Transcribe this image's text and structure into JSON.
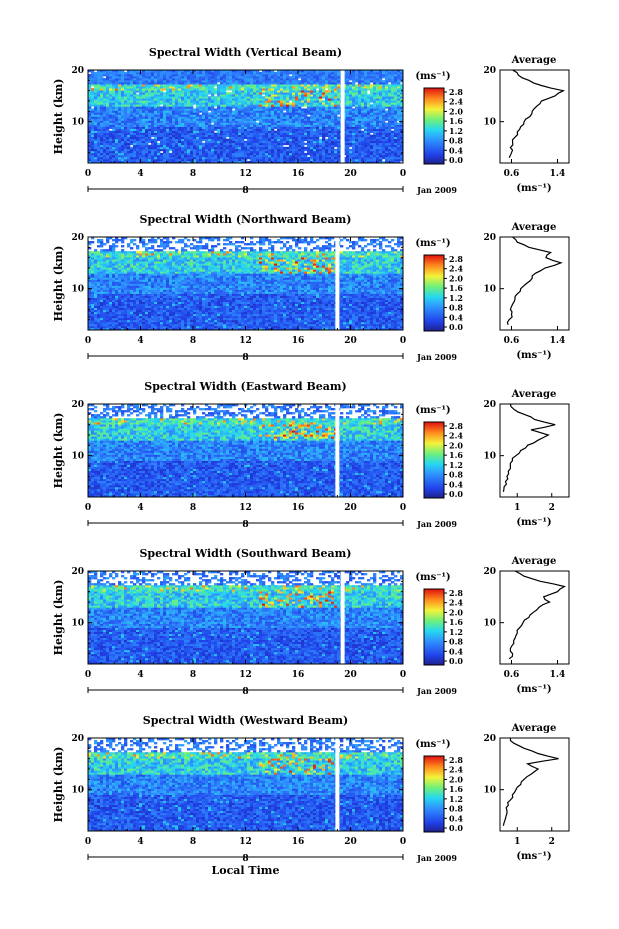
{
  "chart_data": [
    {
      "type": "heatmap",
      "title": "Spectral Width (Vertical Beam)",
      "ylabel": "Height (km)",
      "xlim": [
        0,
        24
      ],
      "ylim": [
        2,
        20
      ],
      "x_ticks": [
        "0",
        "4",
        "8",
        "12",
        "16",
        "20",
        "0"
      ],
      "y_ticks": [
        "10",
        "20"
      ],
      "date_marker": "8",
      "date_label": "Jan 2009",
      "gap_hour": 19.4,
      "colorbar": {
        "unit": "(ms⁻¹)",
        "ticks": [
          "2.8",
          "2.4",
          "2.0",
          "1.6",
          "1.2",
          "0.8",
          "0.4",
          "0.0"
        ]
      },
      "average": {
        "title": "Average",
        "xlabel": "(ms⁻¹)",
        "x_ticks": [
          "0.6",
          "1.4"
        ],
        "y_ticks": [
          "10",
          "20"
        ],
        "xlim": [
          0.4,
          1.6
        ],
        "heights": [
          3,
          4,
          5,
          6,
          7,
          8,
          9,
          10,
          11,
          12,
          13,
          14,
          15,
          16,
          17,
          18,
          19,
          20
        ],
        "values": [
          0.56,
          0.6,
          0.58,
          0.62,
          0.66,
          0.7,
          0.76,
          0.82,
          0.92,
          0.96,
          1.04,
          1.12,
          1.36,
          1.5,
          1.12,
          0.9,
          0.72,
          0.62
        ]
      }
    },
    {
      "type": "heatmap",
      "title": "Spectral Width (Northward Beam)",
      "ylabel": "Height (km)",
      "xlim": [
        0,
        24
      ],
      "ylim": [
        2,
        20
      ],
      "x_ticks": [
        "0",
        "4",
        "8",
        "12",
        "16",
        "20",
        "0"
      ],
      "y_ticks": [
        "10",
        "20"
      ],
      "date_marker": "8",
      "date_label": "Jan 2009",
      "gap_hour": 19.0,
      "colorbar": {
        "unit": "(ms⁻¹)",
        "ticks": [
          "2.8",
          "2.4",
          "2.0",
          "1.6",
          "1.2",
          "0.8",
          "0.4",
          "0.0"
        ]
      },
      "average": {
        "title": "Average",
        "xlabel": "(ms⁻¹)",
        "x_ticks": [
          "0.6",
          "1.4"
        ],
        "y_ticks": [
          "10",
          "20"
        ],
        "xlim": [
          0.4,
          1.6
        ],
        "heights": [
          3,
          4,
          5,
          6,
          7,
          8,
          9,
          10,
          11,
          12,
          13,
          14,
          15,
          16,
          17,
          18,
          19,
          20
        ],
        "values": [
          0.54,
          0.56,
          0.6,
          0.58,
          0.62,
          0.66,
          0.7,
          0.76,
          0.86,
          0.96,
          1.02,
          1.18,
          1.46,
          1.2,
          1.28,
          0.9,
          0.7,
          0.62
        ]
      }
    },
    {
      "type": "heatmap",
      "title": "Spectral Width (Eastward Beam)",
      "ylabel": "Height (km)",
      "xlim": [
        0,
        24
      ],
      "ylim": [
        2,
        20
      ],
      "x_ticks": [
        "0",
        "4",
        "8",
        "12",
        "16",
        "20",
        "0"
      ],
      "y_ticks": [
        "10",
        "20"
      ],
      "date_marker": "8",
      "date_label": "Jan 2009",
      "gap_hour": 19.0,
      "colorbar": {
        "unit": "(ms⁻¹)",
        "ticks": [
          "2.8",
          "2.4",
          "2.0",
          "1.6",
          "1.2",
          "0.8",
          "0.4",
          "0.0"
        ]
      },
      "average": {
        "title": "Average",
        "xlabel": "(ms⁻¹)",
        "x_ticks": [
          "1",
          "2"
        ],
        "y_ticks": [
          "10",
          "20"
        ],
        "xlim": [
          0.5,
          2.5
        ],
        "heights": [
          3,
          4,
          5,
          6,
          7,
          8,
          9,
          10,
          11,
          12,
          13,
          14,
          15,
          16,
          17,
          18,
          19,
          20
        ],
        "values": [
          0.6,
          0.62,
          0.66,
          0.7,
          0.74,
          0.8,
          0.86,
          0.96,
          1.1,
          1.3,
          1.6,
          1.9,
          1.4,
          2.1,
          1.5,
          1.2,
          0.9,
          0.8
        ]
      }
    },
    {
      "type": "heatmap",
      "title": "Spectral Width (Southward Beam)",
      "ylabel": "Height (km)",
      "xlim": [
        0,
        24
      ],
      "ylim": [
        2,
        20
      ],
      "x_ticks": [
        "0",
        "4",
        "8",
        "12",
        "16",
        "20",
        "0"
      ],
      "y_ticks": [
        "10",
        "20"
      ],
      "date_marker": "8",
      "date_label": "Jan 2009",
      "gap_hour": 19.4,
      "colorbar": {
        "unit": "(ms⁻¹)",
        "ticks": [
          "2.8",
          "2.4",
          "2.0",
          "1.6",
          "1.2",
          "0.8",
          "0.4",
          "0.0"
        ]
      },
      "average": {
        "title": "Average",
        "xlabel": "(ms⁻¹)",
        "x_ticks": [
          "0.6",
          "1.4"
        ],
        "y_ticks": [
          "10",
          "20"
        ],
        "xlim": [
          0.4,
          1.6
        ],
        "heights": [
          3,
          4,
          5,
          6,
          7,
          8,
          9,
          10,
          11,
          12,
          13,
          14,
          15,
          16,
          17,
          18,
          19,
          20
        ],
        "values": [
          0.56,
          0.62,
          0.58,
          0.64,
          0.66,
          0.7,
          0.74,
          0.8,
          0.9,
          0.98,
          1.08,
          1.26,
          1.16,
          1.4,
          1.52,
          1.1,
          0.82,
          0.66
        ]
      }
    },
    {
      "type": "heatmap",
      "title": "Spectral Width (Westward Beam)",
      "ylabel": "Height (km)",
      "xlabel": "Local Time",
      "xlim": [
        0,
        24
      ],
      "ylim": [
        2,
        20
      ],
      "x_ticks": [
        "0",
        "4",
        "8",
        "12",
        "16",
        "20",
        "0"
      ],
      "y_ticks": [
        "10",
        "20"
      ],
      "date_marker": "8",
      "date_label": "Jan 2009",
      "gap_hour": 19.0,
      "colorbar": {
        "unit": "(ms⁻¹)",
        "ticks": [
          "2.8",
          "2.4",
          "2.0",
          "1.6",
          "1.2",
          "0.8",
          "0.4",
          "0.0"
        ]
      },
      "average": {
        "title": "Average",
        "xlabel": "(ms⁻¹)",
        "x_ticks": [
          "1",
          "2"
        ],
        "y_ticks": [
          "10",
          "20"
        ],
        "xlim": [
          0.5,
          2.5
        ],
        "heights": [
          3,
          4,
          5,
          6,
          7,
          8,
          9,
          10,
          11,
          12,
          13,
          14,
          15,
          16,
          17,
          18,
          19,
          20
        ],
        "values": [
          0.6,
          0.64,
          0.68,
          0.7,
          0.74,
          0.8,
          0.86,
          0.96,
          1.1,
          1.2,
          1.4,
          1.6,
          1.3,
          2.2,
          1.6,
          1.2,
          0.9,
          0.8
        ]
      }
    }
  ]
}
